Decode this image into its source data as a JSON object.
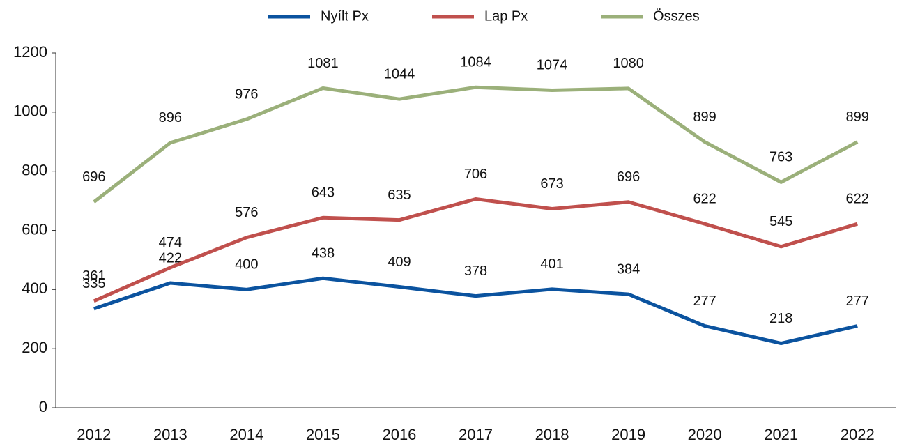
{
  "chart_data": {
    "type": "line",
    "categories": [
      "2012",
      "2013",
      "2014",
      "2015",
      "2016",
      "2017",
      "2018",
      "2019",
      "2020",
      "2021",
      "2022"
    ],
    "series": [
      {
        "name": "Nyílt Px",
        "color": "#0b539f",
        "values": [
          335,
          422,
          400,
          438,
          409,
          378,
          401,
          384,
          277,
          218,
          277
        ]
      },
      {
        "name": "Lap Px",
        "color": "#c0504d",
        "values": [
          361,
          474,
          576,
          643,
          635,
          706,
          673,
          696,
          622,
          545,
          622
        ]
      },
      {
        "name": "Összes",
        "color": "#9bb07a",
        "values": [
          696,
          896,
          976,
          1081,
          1044,
          1084,
          1074,
          1080,
          899,
          763,
          899
        ]
      }
    ],
    "ylim": [
      0,
      1200
    ],
    "yticks": [
      0,
      200,
      400,
      600,
      800,
      1000,
      1200
    ],
    "grid": false,
    "legend": "top"
  }
}
